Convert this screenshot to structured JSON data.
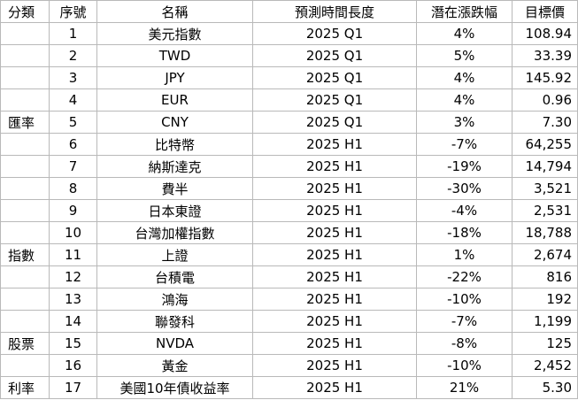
{
  "headers": {
    "category": "分類",
    "index": "序號",
    "name": "名稱",
    "period": "預測時間長度",
    "potential": "潛在漲跌幅",
    "target": "目標價"
  },
  "rows": [
    {
      "category": "",
      "index": "1",
      "name": "美元指數",
      "period": "2025 Q1",
      "potential": "4%",
      "target": "108.94"
    },
    {
      "category": "",
      "index": "2",
      "name": "TWD",
      "period": "2025 Q1",
      "potential": "5%",
      "target": "33.39"
    },
    {
      "category": "",
      "index": "3",
      "name": "JPY",
      "period": "2025 Q1",
      "potential": "4%",
      "target": "145.92"
    },
    {
      "category": "",
      "index": "4",
      "name": "EUR",
      "period": "2025 Q1",
      "potential": "4%",
      "target": "0.96"
    },
    {
      "category": "匯率",
      "index": "5",
      "name": "CNY",
      "period": "2025 Q1",
      "potential": "3%",
      "target": "7.30"
    },
    {
      "category": "",
      "index": "6",
      "name": "比特幣",
      "period": "2025 H1",
      "potential": "-7%",
      "target": "64,255"
    },
    {
      "category": "",
      "index": "7",
      "name": "納斯達克",
      "period": "2025 H1",
      "potential": "-19%",
      "target": "14,794"
    },
    {
      "category": "",
      "index": "8",
      "name": "費半",
      "period": "2025 H1",
      "potential": "-30%",
      "target": "3,521"
    },
    {
      "category": "",
      "index": "9",
      "name": "日本東證",
      "period": "2025 H1",
      "potential": "-4%",
      "target": "2,531"
    },
    {
      "category": "",
      "index": "10",
      "name": "台灣加權指數",
      "period": "2025 H1",
      "potential": "-18%",
      "target": "18,788"
    },
    {
      "category": "指數",
      "index": "11",
      "name": "上證",
      "period": "2025 H1",
      "potential": "1%",
      "target": "2,674"
    },
    {
      "category": "",
      "index": "12",
      "name": "台積電",
      "period": "2025 H1",
      "potential": "-22%",
      "target": "816"
    },
    {
      "category": "",
      "index": "13",
      "name": "鴻海",
      "period": "2025 H1",
      "potential": "-10%",
      "target": "192"
    },
    {
      "category": "",
      "index": "14",
      "name": "聯發科",
      "period": "2025 H1",
      "potential": "-7%",
      "target": "1,199"
    },
    {
      "category": "股票",
      "index": "15",
      "name": "NVDA",
      "period": "2025 H1",
      "potential": "-8%",
      "target": "125"
    },
    {
      "category": "",
      "index": "16",
      "name": "黃金",
      "period": "2025 H1",
      "potential": "-10%",
      "target": "2,452"
    },
    {
      "category": "利率",
      "index": "17",
      "name": "美國10年債收益率",
      "period": "2025 H1",
      "potential": "21%",
      "target": "5.30"
    }
  ]
}
